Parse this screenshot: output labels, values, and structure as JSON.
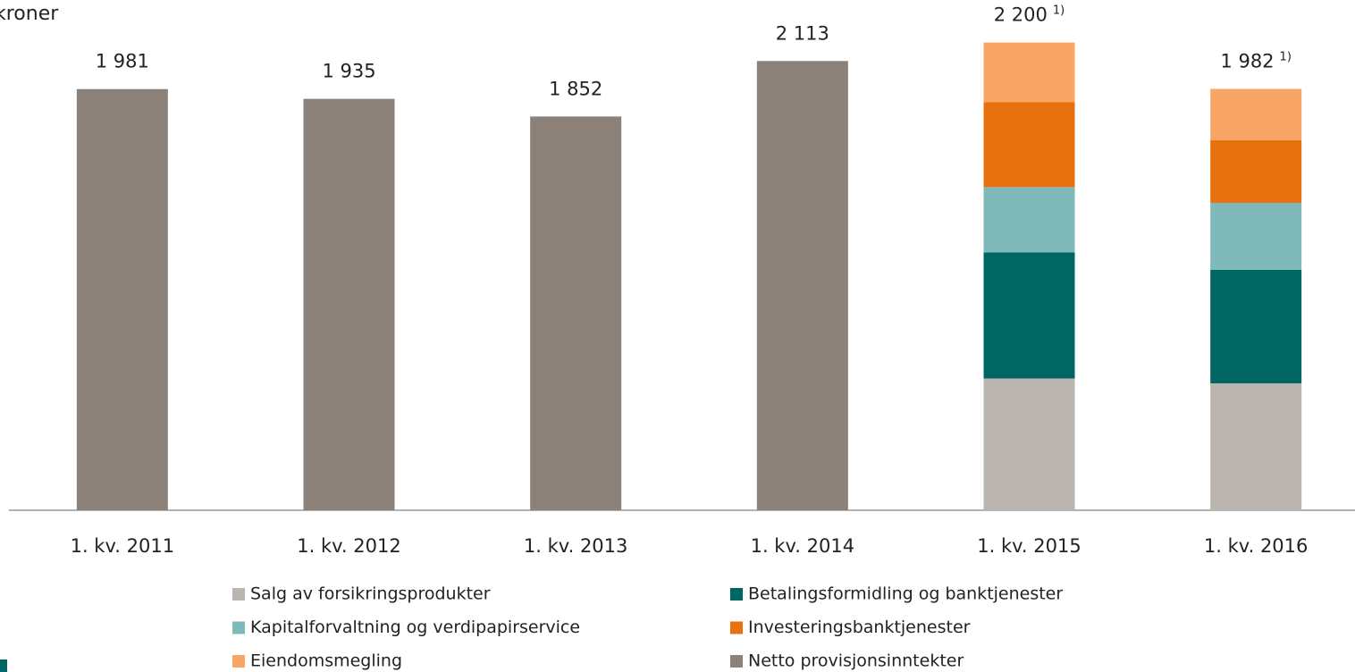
{
  "chart_data": {
    "type": "stacked_bar",
    "title": "kroner",
    "categories": [
      "1. kv. 2011",
      "1. kv. 2012",
      "1. kv. 2013",
      "1. kv. 2014",
      "1. kv. 2015",
      "1. kv. 2016"
    ],
    "series": [
      {
        "name": "Salg av forsikringsprodukter",
        "color": "#bab5ae",
        "values": [
          null,
          null,
          null,
          null,
          620,
          597
        ]
      },
      {
        "name": "Betalingsformidling og banktjenester",
        "color": "#006663",
        "values": [
          null,
          null,
          null,
          null,
          593,
          534
        ]
      },
      {
        "name": "Kapitalforvaltning og verdipapirservice",
        "color": "#7fb9b9",
        "values": [
          null,
          null,
          null,
          null,
          307,
          315
        ]
      },
      {
        "name": "Investeringsbanktjenester",
        "color": "#e8700e",
        "values": [
          null,
          null,
          null,
          null,
          400,
          294
        ]
      },
      {
        "name": "Eiendomsmegling",
        "color": "#f8a566",
        "values": [
          null,
          null,
          null,
          null,
          280,
          242
        ]
      },
      {
        "name": "Netto provisjonsinntekter",
        "color": "#8b8178",
        "values": [
          1981,
          1935,
          1852,
          2113,
          null,
          null
        ]
      }
    ],
    "totals": [
      1981,
      1935,
      1852,
      2113,
      2200,
      1982
    ],
    "total_labels": [
      "1 981",
      "1 935",
      "1 852",
      "2 113",
      "2 200",
      "1 982"
    ],
    "total_notes": [
      null,
      null,
      null,
      null,
      "1)",
      "1)"
    ],
    "ylim": [
      0,
      2400
    ]
  }
}
